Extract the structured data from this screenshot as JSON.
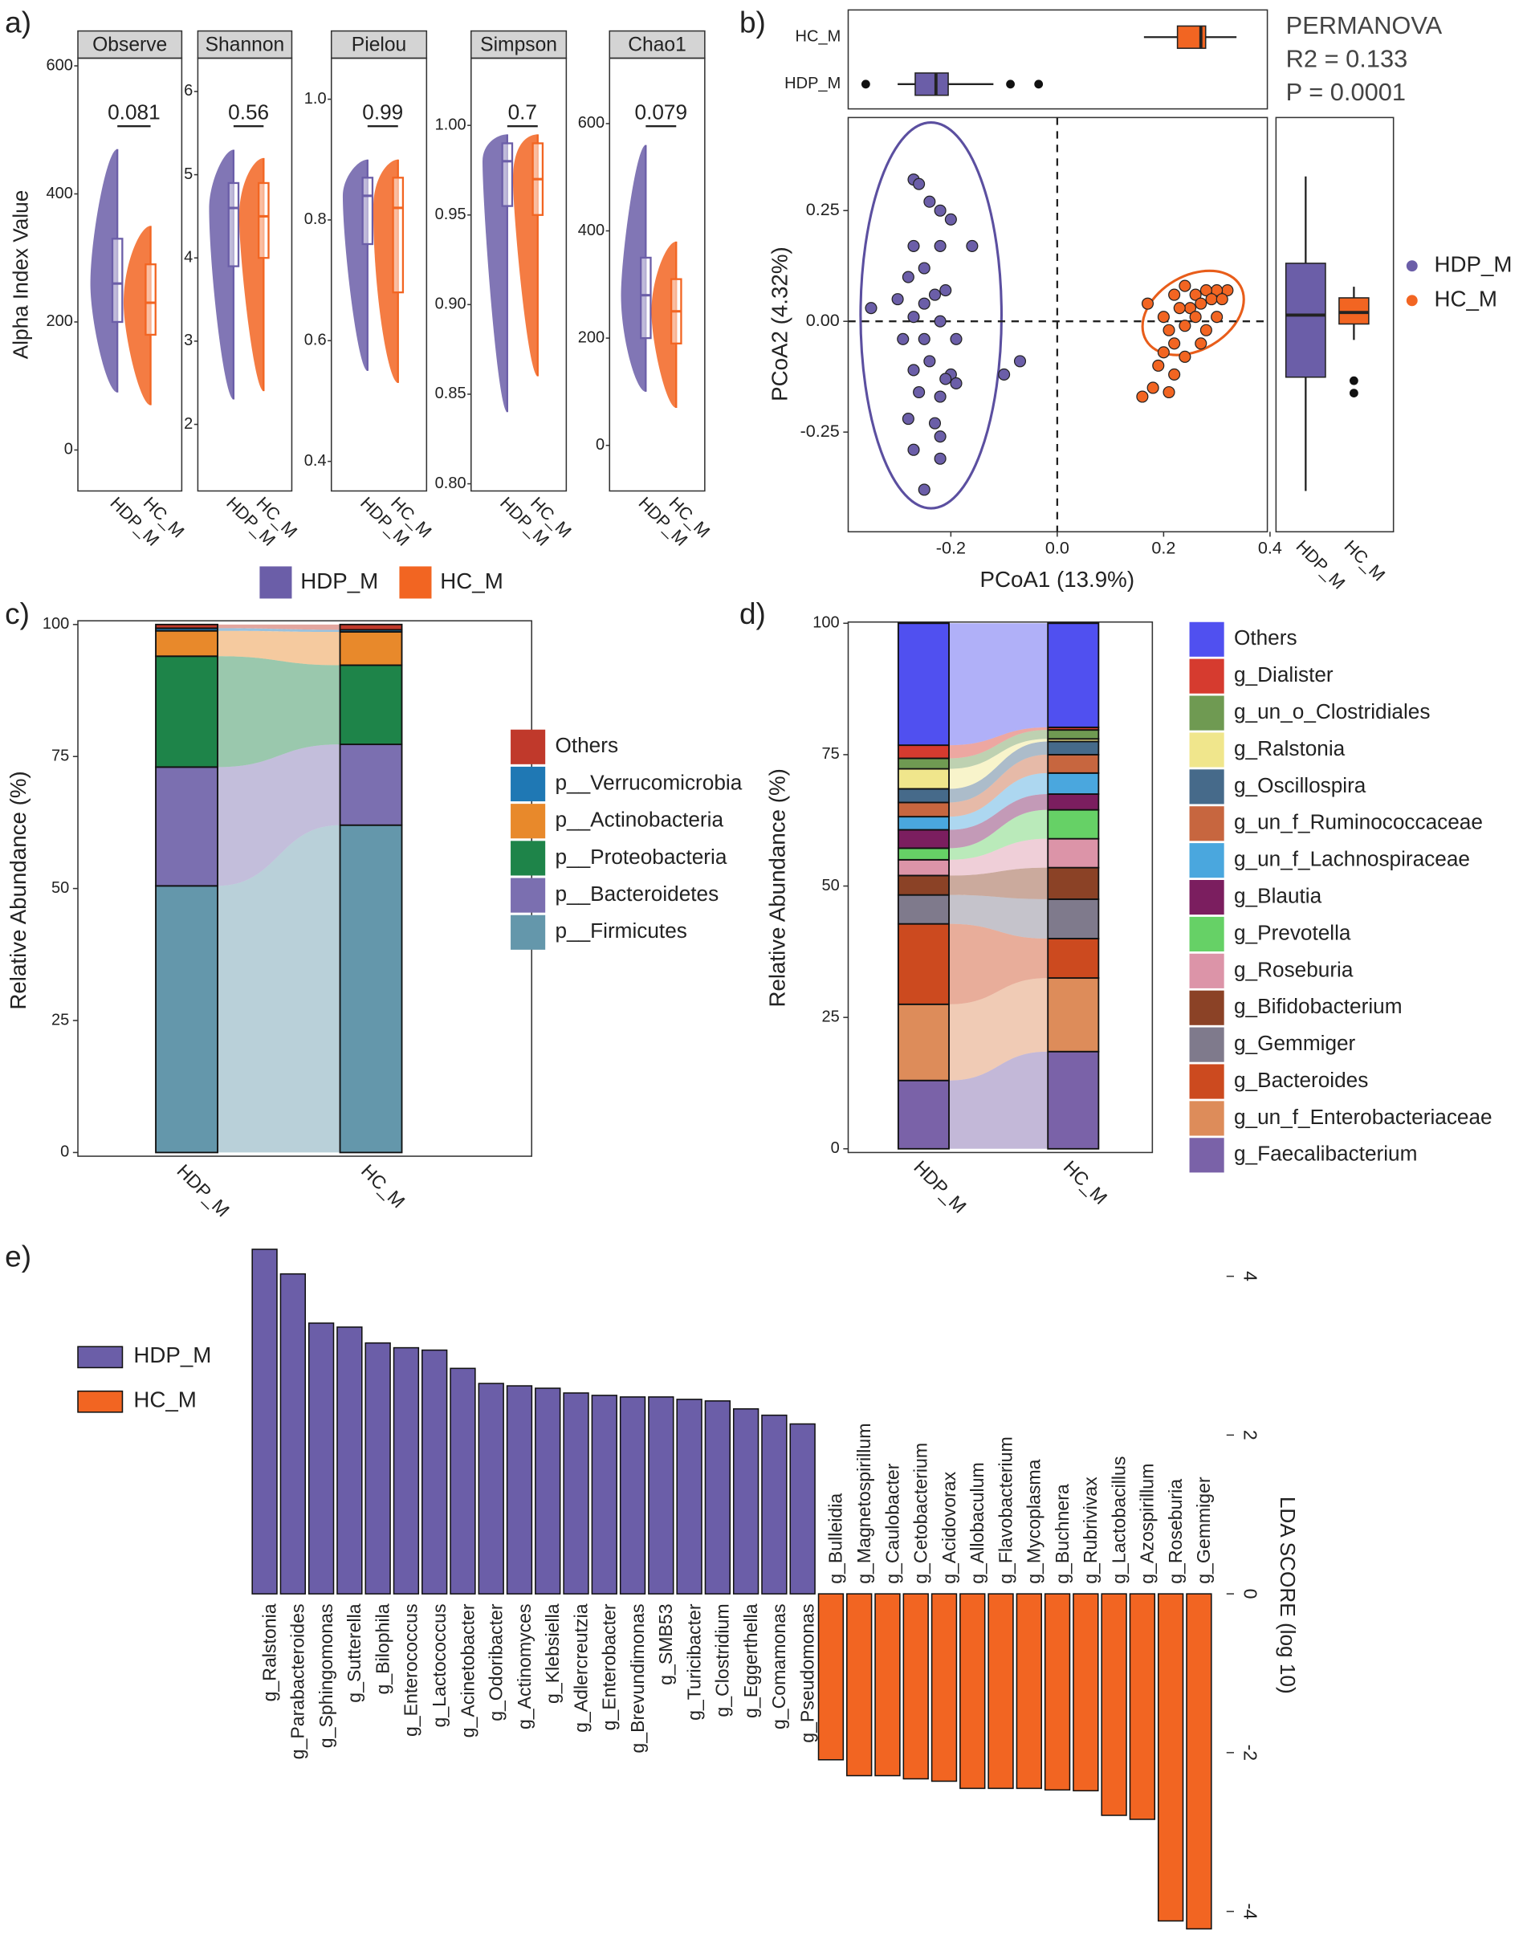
{
  "chart_data": [
    {
      "type": "violin",
      "panel": "a)",
      "ylabel": "Alpha Index Value",
      "categories": [
        "HDP_M",
        "HC_M"
      ],
      "series": [
        {
          "name": "HDP_M",
          "color": "#6b5ea8"
        },
        {
          "name": "HC_M",
          "color": "#f26522"
        }
      ],
      "facets": [
        {
          "title": "Observe",
          "p": 0.081,
          "ylim": [
            -64,
            612
          ],
          "yticks": [
            0,
            200,
            400,
            600
          ],
          "boxes": [
            [
              90,
              200,
              260,
              330,
              470
            ],
            [
              70,
              180,
              230,
              290,
              350
            ]
          ]
        },
        {
          "title": "Shannon",
          "p": 0.56,
          "ylim": [
            1.2,
            6.4
          ],
          "yticks": [
            2,
            3,
            4,
            5,
            6
          ],
          "boxes": [
            [
              2.3,
              3.9,
              4.6,
              4.9,
              5.3
            ],
            [
              2.4,
              4.0,
              4.5,
              4.9,
              5.2
            ]
          ]
        },
        {
          "title": "Pielou",
          "p": 0.99,
          "ylim": [
            0.351,
            1.068
          ],
          "yticks": [
            0.4,
            0.6,
            0.8,
            {
              "value": 1,
              "label": "1.0"
            }
          ],
          "boxes": [
            [
              0.55,
              0.76,
              0.84,
              0.87,
              0.9
            ],
            [
              0.53,
              0.68,
              0.82,
              0.87,
              0.9
            ]
          ]
        },
        {
          "title": "Simpson",
          "p": 0.7,
          "ylim": [
            0.796,
            1.0375
          ],
          "yticks": [
            {
              "value": 0.8,
              "label": "0.80"
            },
            0.85,
            {
              "value": 0.9,
              "label": "0.90"
            },
            0.95,
            {
              "value": 1,
              "label": "1.00"
            }
          ],
          "boxes": [
            [
              0.84,
              0.955,
              0.98,
              0.99,
              0.995
            ],
            [
              0.86,
              0.95,
              0.97,
              0.99,
              0.995
            ]
          ]
        },
        {
          "title": "Chao1",
          "p": 0.079,
          "ylim": [
            -85,
            722
          ],
          "yticks": [
            0,
            200,
            400,
            600
          ],
          "boxes": [
            [
              100,
              200,
              280,
              350,
              560
            ],
            [
              70,
              190,
              250,
              310,
              380
            ]
          ]
        }
      ]
    },
    {
      "type": "pcoa",
      "panel": "b)",
      "xlabel": "PCoA1 (13.9%)",
      "ylabel": "PCoA2 (4.32%)",
      "xlim": [
        -0.393,
        0.395
      ],
      "ylim": [
        -0.475,
        0.46
      ],
      "xticks": [
        -0.2,
        {
          "value": 0,
          "label": "0.0"
        },
        0.2,
        0.4
      ],
      "yticks": [
        -0.25,
        {
          "value": 0,
          "label": "0.00"
        },
        0.25
      ],
      "annotations": [
        "PERMANOVA",
        "R2 = 0.133",
        "P = 0.0001"
      ],
      "legend": "right",
      "series": [
        {
          "name": "HDP_M",
          "color": "#6b5ea8",
          "x": [
            -0.27,
            -0.26,
            -0.24,
            -0.22,
            -0.2,
            -0.27,
            -0.22,
            -0.16,
            -0.25,
            -0.28,
            -0.23,
            -0.21,
            -0.25,
            -0.3,
            -0.35,
            -0.27,
            -0.22,
            -0.29,
            -0.25,
            -0.19,
            -0.24,
            -0.27,
            -0.2,
            -0.21,
            -0.26,
            -0.22,
            -0.28,
            -0.23,
            -0.22,
            -0.27,
            -0.22,
            -0.25,
            -0.1,
            -0.07,
            -0.19
          ],
          "y": [
            0.32,
            0.31,
            0.27,
            0.25,
            0.23,
            0.17,
            0.17,
            0.17,
            0.12,
            0.1,
            0.06,
            0.07,
            0.04,
            0.05,
            0.03,
            0.01,
            0.0,
            -0.04,
            -0.04,
            -0.04,
            -0.09,
            -0.11,
            -0.12,
            -0.13,
            -0.16,
            -0.17,
            -0.22,
            -0.23,
            -0.26,
            -0.29,
            -0.31,
            -0.38,
            -0.12,
            -0.09,
            -0.14
          ],
          "box_x": {
            "stats": [
              -0.3,
              -0.267,
              -0.228,
              -0.205,
              -0.12
            ],
            "outliers": [
              -0.36,
              -0.088,
              -0.035
            ]
          },
          "box_y": {
            "stats": [
              -0.383,
              -0.126,
              0.014,
              0.131,
              0.327
            ],
            "outliers": []
          }
        },
        {
          "name": "HC_M",
          "color": "#f26522",
          "x": [
            0.32,
            0.3,
            0.28,
            0.26,
            0.24,
            0.22,
            0.29,
            0.31,
            0.27,
            0.25,
            0.23,
            0.17,
            0.2,
            0.26,
            0.3,
            0.24,
            0.21,
            0.28,
            0.22,
            0.27,
            0.2,
            0.24,
            0.19,
            0.22,
            0.18,
            0.16,
            0.21
          ],
          "y": [
            0.07,
            0.07,
            0.07,
            0.06,
            0.08,
            0.06,
            0.05,
            0.05,
            0.04,
            0.03,
            0.03,
            0.04,
            0.01,
            0.01,
            0.01,
            -0.01,
            -0.02,
            -0.02,
            -0.05,
            -0.05,
            -0.07,
            -0.08,
            -0.1,
            -0.12,
            -0.15,
            -0.17,
            -0.16
          ],
          "box_x": {
            "stats": [
              0.163,
              0.226,
              0.27,
              0.279,
              0.337
            ],
            "outliers": []
          },
          "box_y": {
            "stats": [
              -0.042,
              -0.006,
              0.02,
              0.053,
              0.078
            ],
            "outliers": [
              -0.134,
              -0.162
            ]
          }
        }
      ]
    },
    {
      "type": "stacked_alluvial",
      "panel": "c)",
      "ylabel": "Relative Abundance (%)",
      "categories": [
        "HDP_M",
        "HC_M"
      ],
      "ylim": [
        0,
        100
      ],
      "yticks": [
        0,
        25,
        50,
        75,
        100
      ],
      "series": [
        {
          "name": "Others",
          "color": "#c0392b",
          "values": [
            0.7,
            1.0
          ]
        },
        {
          "name": "p__Verrucomicrobia",
          "color": "#1f78b4",
          "values": [
            0.5,
            0.4
          ]
        },
        {
          "name": "p__Actinobacteria",
          "color": "#e8892b",
          "values": [
            4.8,
            6.3
          ]
        },
        {
          "name": "p__Proteobacteria",
          "color": "#1e8449",
          "values": [
            21,
            15
          ]
        },
        {
          "name": "p__Bacteroidetes",
          "color": "#7b6fb0",
          "values": [
            22.5,
            15.3
          ]
        },
        {
          "name": "p__Firmicutes",
          "color": "#6497ab",
          "values": [
            50.5,
            62
          ]
        }
      ]
    },
    {
      "type": "stacked_alluvial",
      "panel": "d)",
      "ylabel": "Relative Abundance (%)",
      "categories": [
        "HDP_M",
        "HC_M"
      ],
      "ylim": [
        0,
        100
      ],
      "yticks": [
        0,
        25,
        50,
        75,
        100
      ],
      "series": [
        {
          "name": "Others",
          "color": "#5050f0",
          "values": [
            23.2,
            19.8
          ]
        },
        {
          "name": "g_Dialister",
          "color": "#d63b2f",
          "values": [
            2.5,
            0.5
          ]
        },
        {
          "name": "g_un_o_Clostridiales",
          "color": "#6f9a52",
          "values": [
            2,
            1.7
          ]
        },
        {
          "name": "g_Ralstonia",
          "color": "#f0e68c",
          "values": [
            3.8,
            0.5
          ]
        },
        {
          "name": "g_Oscillospira",
          "color": "#466a8a",
          "values": [
            2.6,
            2.5
          ]
        },
        {
          "name": "g_un_f_Ruminococcaceae",
          "color": "#c7663f",
          "values": [
            2.7,
            3.5
          ]
        },
        {
          "name": "g_un_f_Lachnospiraceae",
          "color": "#4aa7de",
          "values": [
            2.5,
            4
          ]
        },
        {
          "name": "g_Blautia",
          "color": "#7b1e5f",
          "values": [
            3.5,
            3
          ]
        },
        {
          "name": "g_Prevotella",
          "color": "#66d166",
          "values": [
            2.2,
            5.5
          ]
        },
        {
          "name": "g_Roseburia",
          "color": "#dc94a8",
          "values": [
            3,
            5.5
          ]
        },
        {
          "name": "g_Bifidobacterium",
          "color": "#8b4226",
          "values": [
            3.7,
            6
          ]
        },
        {
          "name": "g_Gemmiger",
          "color": "#7f7a8c",
          "values": [
            5.5,
            7.5
          ]
        },
        {
          "name": "g_Bacteroides",
          "color": "#cc4a1f",
          "values": [
            15.3,
            7.5
          ]
        },
        {
          "name": "g_un_f_Enterobacteriaceae",
          "color": "#dd8c5a",
          "values": [
            14.5,
            14
          ]
        },
        {
          "name": "g_Faecalibacterium",
          "color": "#7a62a8",
          "values": [
            13,
            18.5
          ]
        }
      ]
    },
    {
      "type": "lda",
      "panel": "e)",
      "ylabel": "LDA SCORE (log 10)",
      "ylim": [
        -4.3,
        4.5
      ],
      "yticks": [
        -4,
        -2,
        0,
        2,
        4
      ],
      "legend": "left",
      "categories": [
        "g_Ralstonia",
        "g_Parabacteroides",
        "g_Sphingomonas",
        "g_Sutterella",
        "g_Bilophila",
        "g_Enterococcus",
        "g_Lactococcus",
        "g_Acinetobacter",
        "g_Odoribacter",
        "g_Actinomyces",
        "g_Klebsiella",
        "g_Adlercreutzia",
        "g_Enterobacter",
        "g_Brevundimonas",
        "g_SMB53",
        "g_Turicibacter",
        "g_Clostridium",
        "g_Eggerthella",
        "g_Comamonas",
        "g_Pseudomonas",
        "g_Bulleidia",
        "g_Magnetospirillum",
        "g_Caulobacter",
        "g_Cetobacterium",
        "g_Acidovorax",
        "g_Allobaculum",
        "g_Flavobacterium",
        "g_Mycoplasma",
        "g_Buchnera",
        "g_Rubrivivax",
        "g_Lactobacillus",
        "g_Azospirillum",
        "g_Roseburia",
        "g_Gemmiger"
      ],
      "series": [
        {
          "name": "HDP_M",
          "color": "#6b5ea8",
          "values": [
            4.34,
            4.03,
            3.41,
            3.36,
            3.16,
            3.1,
            3.07,
            2.84,
            2.65,
            2.62,
            2.59,
            2.53,
            2.5,
            2.48,
            2.48,
            2.45,
            2.43,
            2.33,
            2.25,
            2.14,
            null,
            null,
            null,
            null,
            null,
            null,
            null,
            null,
            null,
            null,
            null,
            null,
            null,
            null
          ]
        },
        {
          "name": "HC_M",
          "color": "#f26522",
          "values": [
            null,
            null,
            null,
            null,
            null,
            null,
            null,
            null,
            null,
            null,
            null,
            null,
            null,
            null,
            null,
            null,
            null,
            null,
            null,
            null,
            -2.09,
            -2.29,
            -2.29,
            -2.33,
            -2.36,
            -2.45,
            -2.45,
            -2.45,
            -2.47,
            -2.48,
            -2.79,
            -2.84,
            -4.12,
            -4.22
          ]
        }
      ]
    }
  ]
}
